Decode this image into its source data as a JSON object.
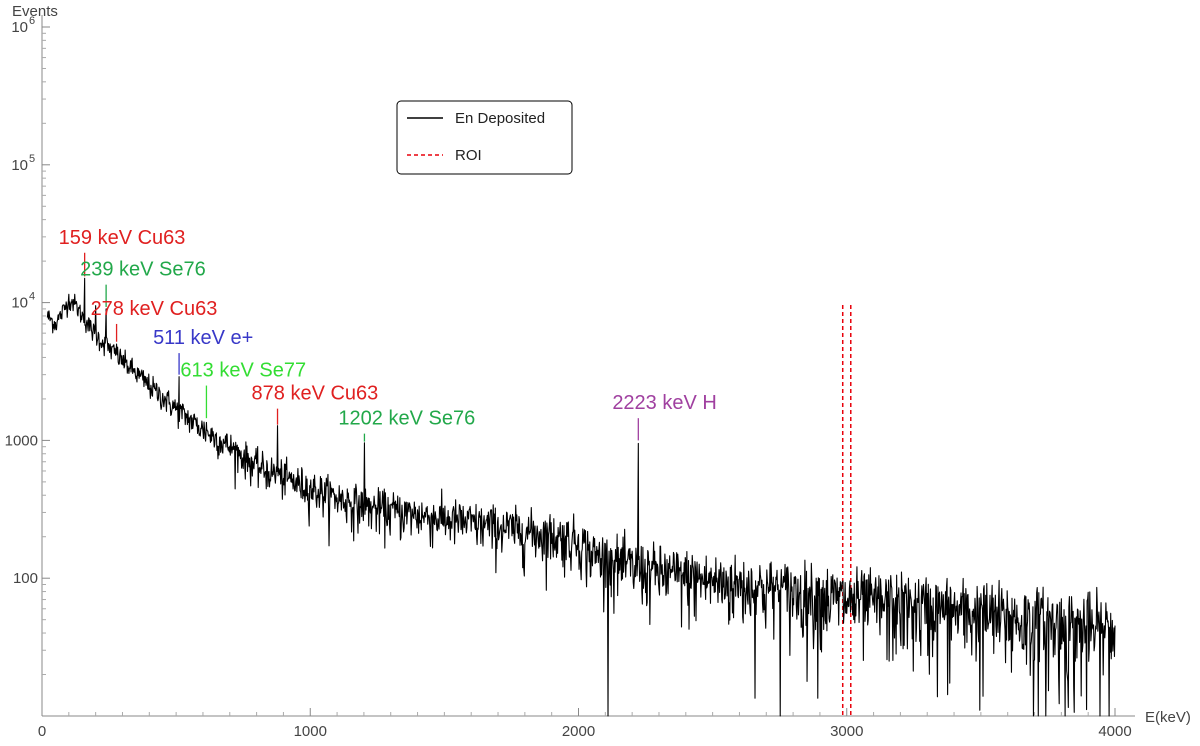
{
  "chart_data": {
    "type": "line",
    "xlabel": "E(keV)",
    "ylabel": "Events",
    "x_scale": "linear",
    "y_scale": "log",
    "xlim": [
      0,
      4000
    ],
    "ylim": [
      10,
      1000000
    ],
    "x_ticks": [
      0,
      1000,
      2000,
      3000,
      4000
    ],
    "x_tick_labels": [
      "0",
      "1000",
      "2000",
      "3000",
      "4000"
    ],
    "y_ticks": [
      {
        "value": 100,
        "label": "100"
      },
      {
        "value": 1000,
        "label": "1000"
      },
      {
        "value": 10000,
        "base": "10",
        "exp": "4"
      },
      {
        "value": 100000,
        "base": "10",
        "exp": "5"
      },
      {
        "value": 1000000,
        "base": "10",
        "exp": "6"
      }
    ],
    "grid": false,
    "legend": {
      "placement": "top-center",
      "entries": [
        {
          "name": "En Deposited",
          "color": "#000000",
          "style": "solid"
        },
        {
          "name": "ROI",
          "color": "#e8000b",
          "style": "dashed"
        }
      ]
    },
    "series": [
      {
        "name": "En Deposited",
        "color": "#000000",
        "x_range": [
          20,
          4000
        ],
        "continuum_nodes": [
          [
            20,
            8000
          ],
          [
            50,
            7000
          ],
          [
            80,
            8800
          ],
          [
            100,
            10500
          ],
          [
            120,
            10000
          ],
          [
            150,
            8000
          ],
          [
            200,
            5800
          ],
          [
            300,
            3800
          ],
          [
            400,
            2500
          ],
          [
            500,
            1700
          ],
          [
            600,
            1200
          ],
          [
            700,
            900
          ],
          [
            800,
            650
          ],
          [
            1000,
            450
          ],
          [
            1200,
            330
          ],
          [
            1500,
            270
          ],
          [
            1800,
            220
          ],
          [
            2000,
            190
          ],
          [
            2050,
            150
          ],
          [
            2200,
            120
          ],
          [
            2500,
            95
          ],
          [
            2800,
            80
          ],
          [
            3000,
            70
          ],
          [
            3500,
            55
          ],
          [
            4000,
            40
          ]
        ],
        "peaks": [
          {
            "energy": 159,
            "height": 15000
          },
          {
            "energy": 200,
            "height": 9500
          },
          {
            "energy": 239,
            "height": 9000
          },
          {
            "energy": 278,
            "height": 5000
          },
          {
            "energy": 511,
            "height": 2900
          },
          {
            "energy": 613,
            "height": 1350
          },
          {
            "energy": 878,
            "height": 1280
          },
          {
            "energy": 1202,
            "height": 960
          },
          {
            "energy": 2223,
            "height": 950
          }
        ]
      }
    ],
    "roi": {
      "x": [
        2985,
        3015
      ],
      "color": "#e8000b"
    },
    "annotations": [
      {
        "text": "159 keV Cu63",
        "x": 159,
        "color": "#e02020",
        "line_color": "#e02020",
        "line_top": 23000,
        "line_bottom": 15500
      },
      {
        "text": "239 keV Se76",
        "x": 239,
        "color": "#22a84a",
        "line_color": "#22a84a",
        "line_top": 13500,
        "line_bottom": 9300
      },
      {
        "text": "278 keV Cu63",
        "x": 278,
        "color": "#e02020",
        "line_color": "#e02020",
        "line_top": 7000,
        "line_bottom": 5200
      },
      {
        "text": "511 keV e+",
        "x": 511,
        "color": "#3838c8",
        "line_color": "#3838c8",
        "line_top": 4300,
        "line_bottom": 3000
      },
      {
        "text": "613 keV Se77",
        "x": 613,
        "color": "#33dd33",
        "line_color": "#33dd33",
        "line_top": 2500,
        "line_bottom": 1450
      },
      {
        "text": "878 keV Cu63",
        "x": 878,
        "color": "#e02020",
        "line_color": "#e02020",
        "line_top": 1700,
        "line_bottom": 1300
      },
      {
        "text": "1202 keV Se76",
        "x": 1202,
        "color": "#22a84a",
        "line_color": "#22a84a",
        "line_top": 1120,
        "line_bottom": 980
      },
      {
        "text": "2223 keV H",
        "x": 2223,
        "color": "#a040a0",
        "line_color": "#a040a0",
        "line_top": 1450,
        "line_bottom": 1000
      }
    ]
  }
}
